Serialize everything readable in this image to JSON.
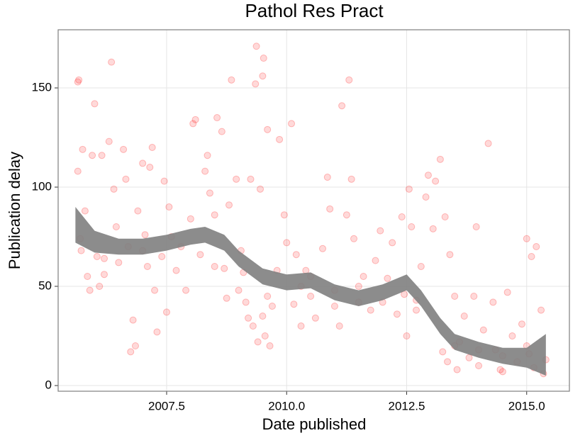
{
  "chart_data": {
    "type": "scatter",
    "title": "Pathol Res Pract",
    "x_label": "Date published",
    "y_label": "Publication delay",
    "xlim": [
      2005.24,
      2015.89
    ],
    "ylim": [
      -2.86,
      179.3
    ],
    "xticks": [
      2007.5,
      {
        "value": 2010,
        "label": "2010.0"
      },
      2012.5,
      {
        "value": 2015,
        "label": "2015.0"
      }
    ],
    "yticks": [
      0,
      50,
      100,
      150
    ],
    "grid": true,
    "points": {
      "color": "#ff0000",
      "x": [
        2005.65,
        2005.67,
        2005.65,
        2005.7,
        2005.72,
        2005.75,
        2005.8,
        2005.85,
        2005.9,
        2005.95,
        2006.0,
        2006.05,
        2006.1,
        2006.15,
        2006.2,
        2006.3,
        2006.35,
        2006.4,
        2006.45,
        2006.5,
        2006.6,
        2006.65,
        2006.7,
        2006.75,
        2006.8,
        2006.85,
        2006.9,
        2007.0,
        2007.05,
        2007.1,
        2007.15,
        2007.2,
        2007.25,
        2007.3,
        2007.4,
        2007.45,
        2007.5,
        2007.55,
        2007.6,
        2007.7,
        2007.8,
        2007.9,
        2008.0,
        2008.05,
        2008.1,
        2008.2,
        2008.3,
        2008.35,
        2008.4,
        2008.5,
        2008.55,
        2008.65,
        2008.7,
        2008.75,
        2008.8,
        2008.85,
        2008.95,
        2009.05,
        2009.1,
        2009.15,
        2009.2,
        2009.25,
        2009.3,
        2009.35,
        2009.37,
        2009.4,
        2009.45,
        2009.5,
        2009.52,
        2009.55,
        2009.6,
        2009.65,
        2009.7,
        2009.8,
        2009.85,
        2009.95,
        2010.0,
        2010.1,
        2010.15,
        2010.2,
        2010.3,
        2010.4,
        2010.5,
        2010.6,
        2010.75,
        2010.85,
        2010.9,
        2011.0,
        2011.1,
        2011.15,
        2011.25,
        2011.3,
        2011.35,
        2011.4,
        2011.5,
        2011.6,
        2011.75,
        2011.85,
        2011.95,
        2012.1,
        2012.2,
        2012.3,
        2012.4,
        2012.45,
        2012.5,
        2012.55,
        2012.6,
        2012.7,
        2012.8,
        2012.9,
        2012.95,
        2013.05,
        2013.1,
        2013.2,
        2013.25,
        2013.3,
        2013.35,
        2013.4,
        2013.5,
        2013.55,
        2013.6,
        2013.7,
        2013.8,
        2013.9,
        2013.95,
        2014.0,
        2014.1,
        2014.2,
        2014.3,
        2014.35,
        2014.45,
        2014.5,
        2014.6,
        2014.7,
        2014.8,
        2014.9,
        2015.0,
        2015.05,
        2015.1,
        2015.15,
        2015.2,
        2015.3,
        2015.35,
        2015.4,
        2009.0,
        2009.5,
        2010.5,
        2011.5,
        2012.0,
        2007.0,
        2006.2,
        2008.5,
        2013.5,
        2014.0,
        2014.5,
        2015.0,
        2012.7,
        2011.0,
        2010.3,
        2009.6
      ],
      "y": [
        153,
        154,
        108,
        74,
        68,
        119,
        88,
        55,
        48,
        116,
        142,
        65,
        50,
        116,
        56,
        123,
        163,
        99,
        80,
        62,
        119,
        104,
        70,
        17,
        33,
        20,
        88,
        112,
        76,
        60,
        110,
        120,
        48,
        27,
        65,
        103,
        37,
        90,
        75,
        58,
        70,
        48,
        84,
        132,
        134,
        66,
        108,
        116,
        97,
        86,
        135,
        128,
        59,
        44,
        91,
        154,
        104,
        68,
        57,
        42,
        34,
        104,
        30,
        152,
        171,
        22,
        99,
        156,
        165,
        25,
        129,
        20,
        40,
        58,
        124,
        86,
        72,
        132,
        41,
        66,
        30,
        58,
        45,
        34,
        69,
        105,
        89,
        48,
        30,
        141,
        86,
        154,
        104,
        74,
        42,
        55,
        38,
        63,
        78,
        54,
        72,
        36,
        85,
        46,
        25,
        99,
        80,
        43,
        60,
        95,
        106,
        79,
        103,
        114,
        17,
        85,
        12,
        66,
        45,
        8,
        22,
        35,
        14,
        45,
        80,
        10,
        28,
        122,
        42,
        18,
        8,
        7,
        47,
        25,
        12,
        31,
        74,
        16,
        65,
        9,
        70,
        38,
        6,
        13,
        48,
        35,
        55,
        50,
        42,
        68,
        64,
        60,
        20,
        18,
        15,
        20,
        38,
        40,
        50,
        45
      ]
    },
    "smooth": {
      "color": "#808080",
      "x": [
        2005.6,
        2006,
        2006.5,
        2007,
        2007.5,
        2008,
        2008.3,
        2008.7,
        2009,
        2009.5,
        2010,
        2010.5,
        2011,
        2011.5,
        2012,
        2012.5,
        2012.8,
        2013.2,
        2013.5,
        2014,
        2014.5,
        2015,
        2015.4
      ],
      "lower": [
        72,
        67,
        66,
        66,
        68,
        71,
        72,
        68,
        60,
        51,
        48,
        49,
        43,
        40,
        43,
        48,
        40,
        26,
        18,
        14,
        11,
        9,
        5
      ],
      "upper": [
        90,
        78,
        74,
        74,
        76,
        79,
        80,
        76,
        68,
        59,
        56,
        57,
        51,
        48,
        51,
        56,
        48,
        34,
        26,
        22,
        19,
        19,
        26
      ]
    }
  }
}
